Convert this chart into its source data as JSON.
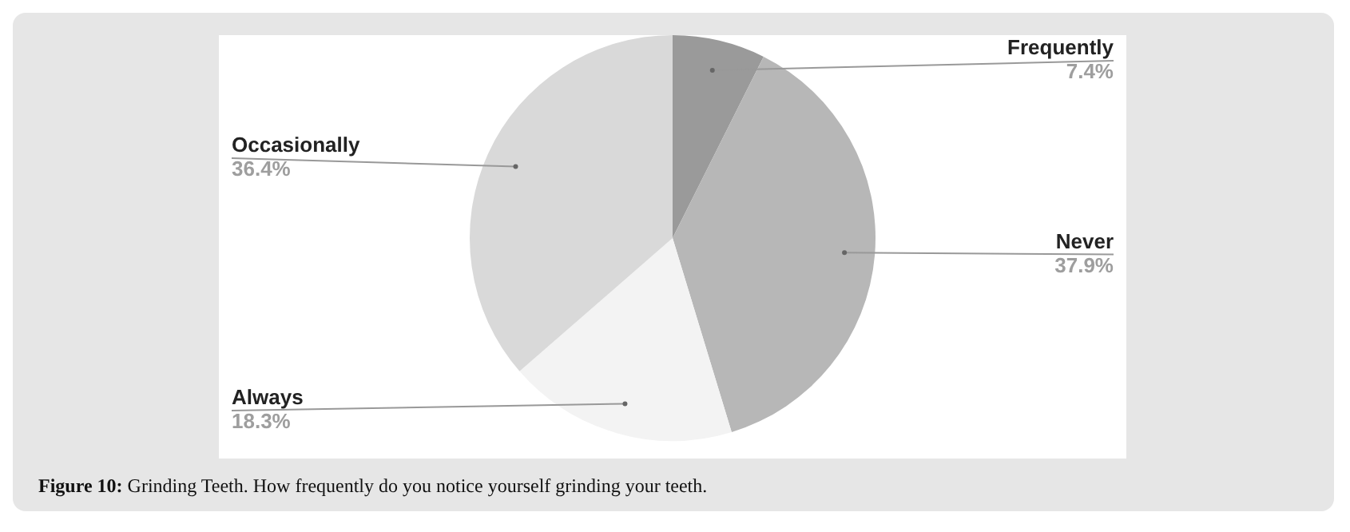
{
  "chart_data": {
    "type": "pie",
    "categories": [
      "Frequently",
      "Never",
      "Always",
      "Occasionally"
    ],
    "values": [
      7.4,
      37.9,
      18.3,
      36.4
    ],
    "value_labels": [
      "7.4%",
      "37.9%",
      "18.3%",
      "36.4%"
    ],
    "colors": [
      "#9a9a9a",
      "#b7b7b7",
      "#f3f3f3",
      "#d9d9d9"
    ],
    "legend": false,
    "annotations": [
      "Figure 10: Grinding Teeth. How frequently do you notice yourself grinding your teeth."
    ]
  }
}
